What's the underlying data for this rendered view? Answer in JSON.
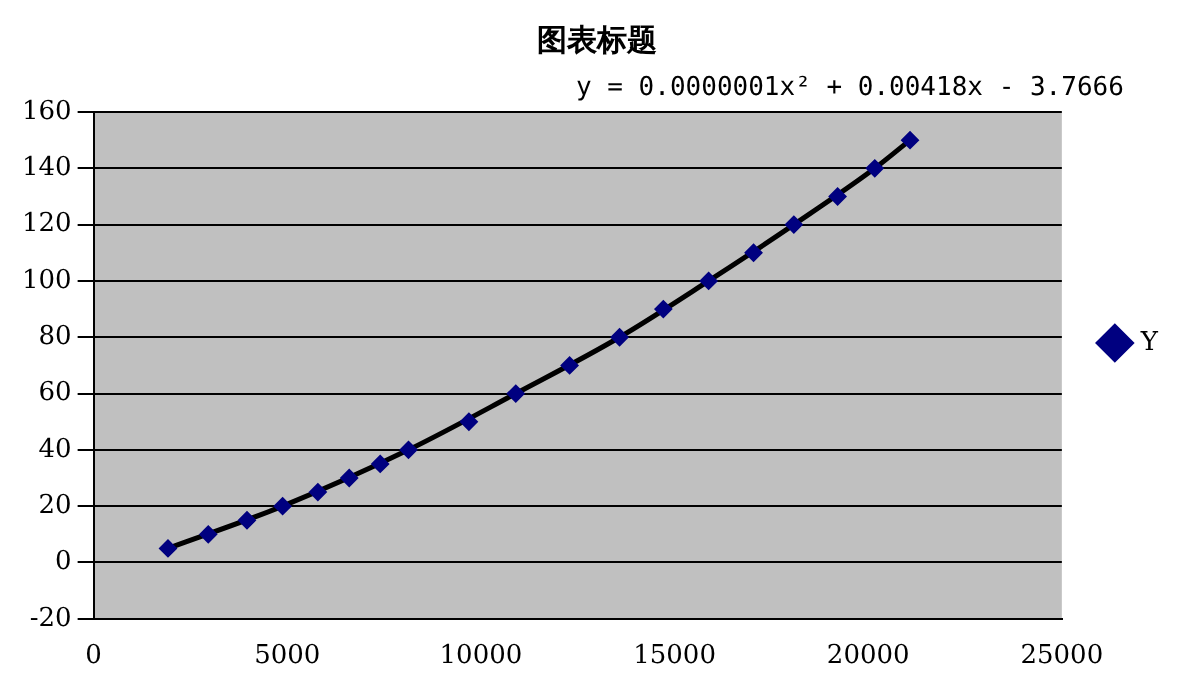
{
  "chart_data": {
    "type": "scatter",
    "title": "图表标题",
    "annotations": [
      "y = 0.0000001x² + 0.00418x - 3.7666"
    ],
    "xlim": [
      0,
      25000
    ],
    "xticks": [
      0,
      5000,
      10000,
      15000,
      20000,
      25000
    ],
    "ylim": [
      -20,
      160
    ],
    "yticks": [
      -20,
      0,
      20,
      40,
      60,
      80,
      100,
      120,
      140,
      160
    ],
    "grid": "y",
    "legend": "right",
    "marker": "diamond",
    "series": [
      {
        "name": "Y",
        "color": "#000080",
        "x": [
          1920,
          2960,
          3960,
          4880,
          5790,
          6600,
          7400,
          8130,
          9690,
          10900,
          12290,
          13580,
          14710,
          15880,
          17040,
          18080,
          19210,
          20170,
          21080
        ],
        "values": [
          5,
          10,
          15,
          20,
          25,
          30,
          35,
          40,
          50,
          60,
          70,
          80,
          90,
          100,
          110,
          120,
          130,
          140,
          150
        ]
      },
      {
        "type": "line",
        "color": "#000000",
        "marker": "none",
        "line_style": "solid",
        "x": [
          1920,
          4880,
          8130,
          10900,
          13580,
          15880,
          18080,
          20170,
          21080
        ],
        "values": [
          5,
          20,
          40,
          60,
          80,
          100,
          120,
          140,
          150
        ]
      }
    ]
  }
}
